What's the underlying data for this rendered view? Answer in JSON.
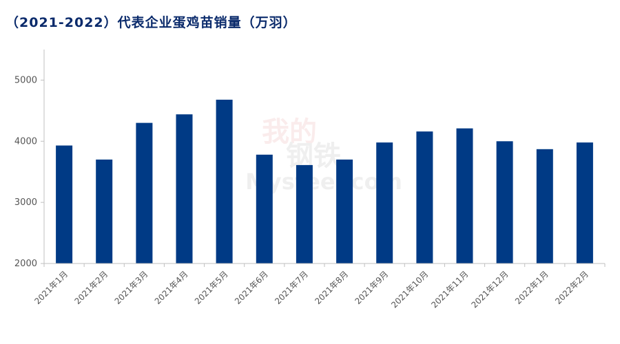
{
  "chart_data": {
    "type": "bar",
    "title": "（2021-2022）代表企业蛋鸡苗销量（万羽）",
    "xlabel": "",
    "ylabel": "",
    "categories": [
      "2021年1月",
      "2021年2月",
      "2021年3月",
      "2021年4月",
      "2021年5月",
      "2021年6月",
      "2021年7月",
      "2021年8月",
      "2021年9月",
      "2021年10月",
      "2021年11月",
      "2021年12月",
      "2022年1月",
      "2022年2月"
    ],
    "values": [
      3930,
      3700,
      4300,
      4440,
      4680,
      3780,
      3610,
      3700,
      3980,
      4160,
      4210,
      4000,
      3870,
      3980
    ],
    "ylim": [
      2000,
      5500
    ],
    "yticks": [
      2000,
      3000,
      4000,
      5000
    ],
    "grid": false,
    "legend": "none",
    "bar_color": "#003a85",
    "axis_color": "#bfbfbf"
  },
  "watermark": {
    "text_top": "我的",
    "text_mid": "钢铁",
    "text_bottom": "Mysteel.com"
  }
}
